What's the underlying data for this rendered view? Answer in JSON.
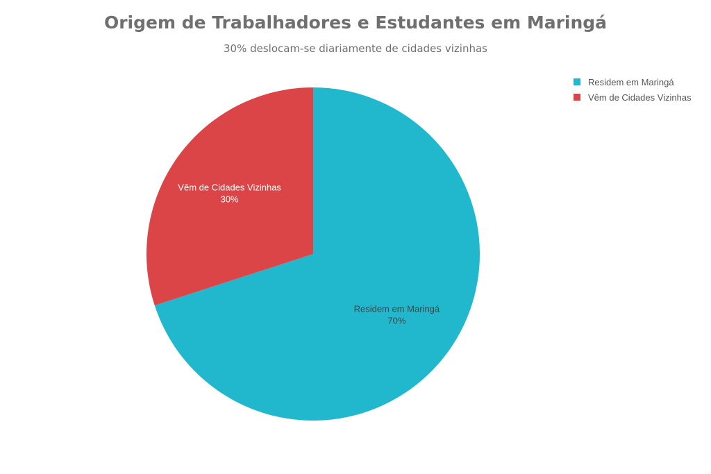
{
  "chart_data": {
    "type": "pie",
    "title": "Origem de Trabalhadores e Estudantes em Maringá",
    "subtitle": "30% deslocam-se diariamente de cidades vizinhas",
    "legend_position": "top-right",
    "slices": [
      {
        "label": "Residem em Maringá",
        "value": 70,
        "value_label": "70%",
        "color": "#21b8cd",
        "text_color": "#444444"
      },
      {
        "label": "Vêm de Cidades Vizinhas",
        "value": 30,
        "value_label": "30%",
        "color": "#dc4548",
        "text_color": "#ffffff"
      }
    ]
  }
}
